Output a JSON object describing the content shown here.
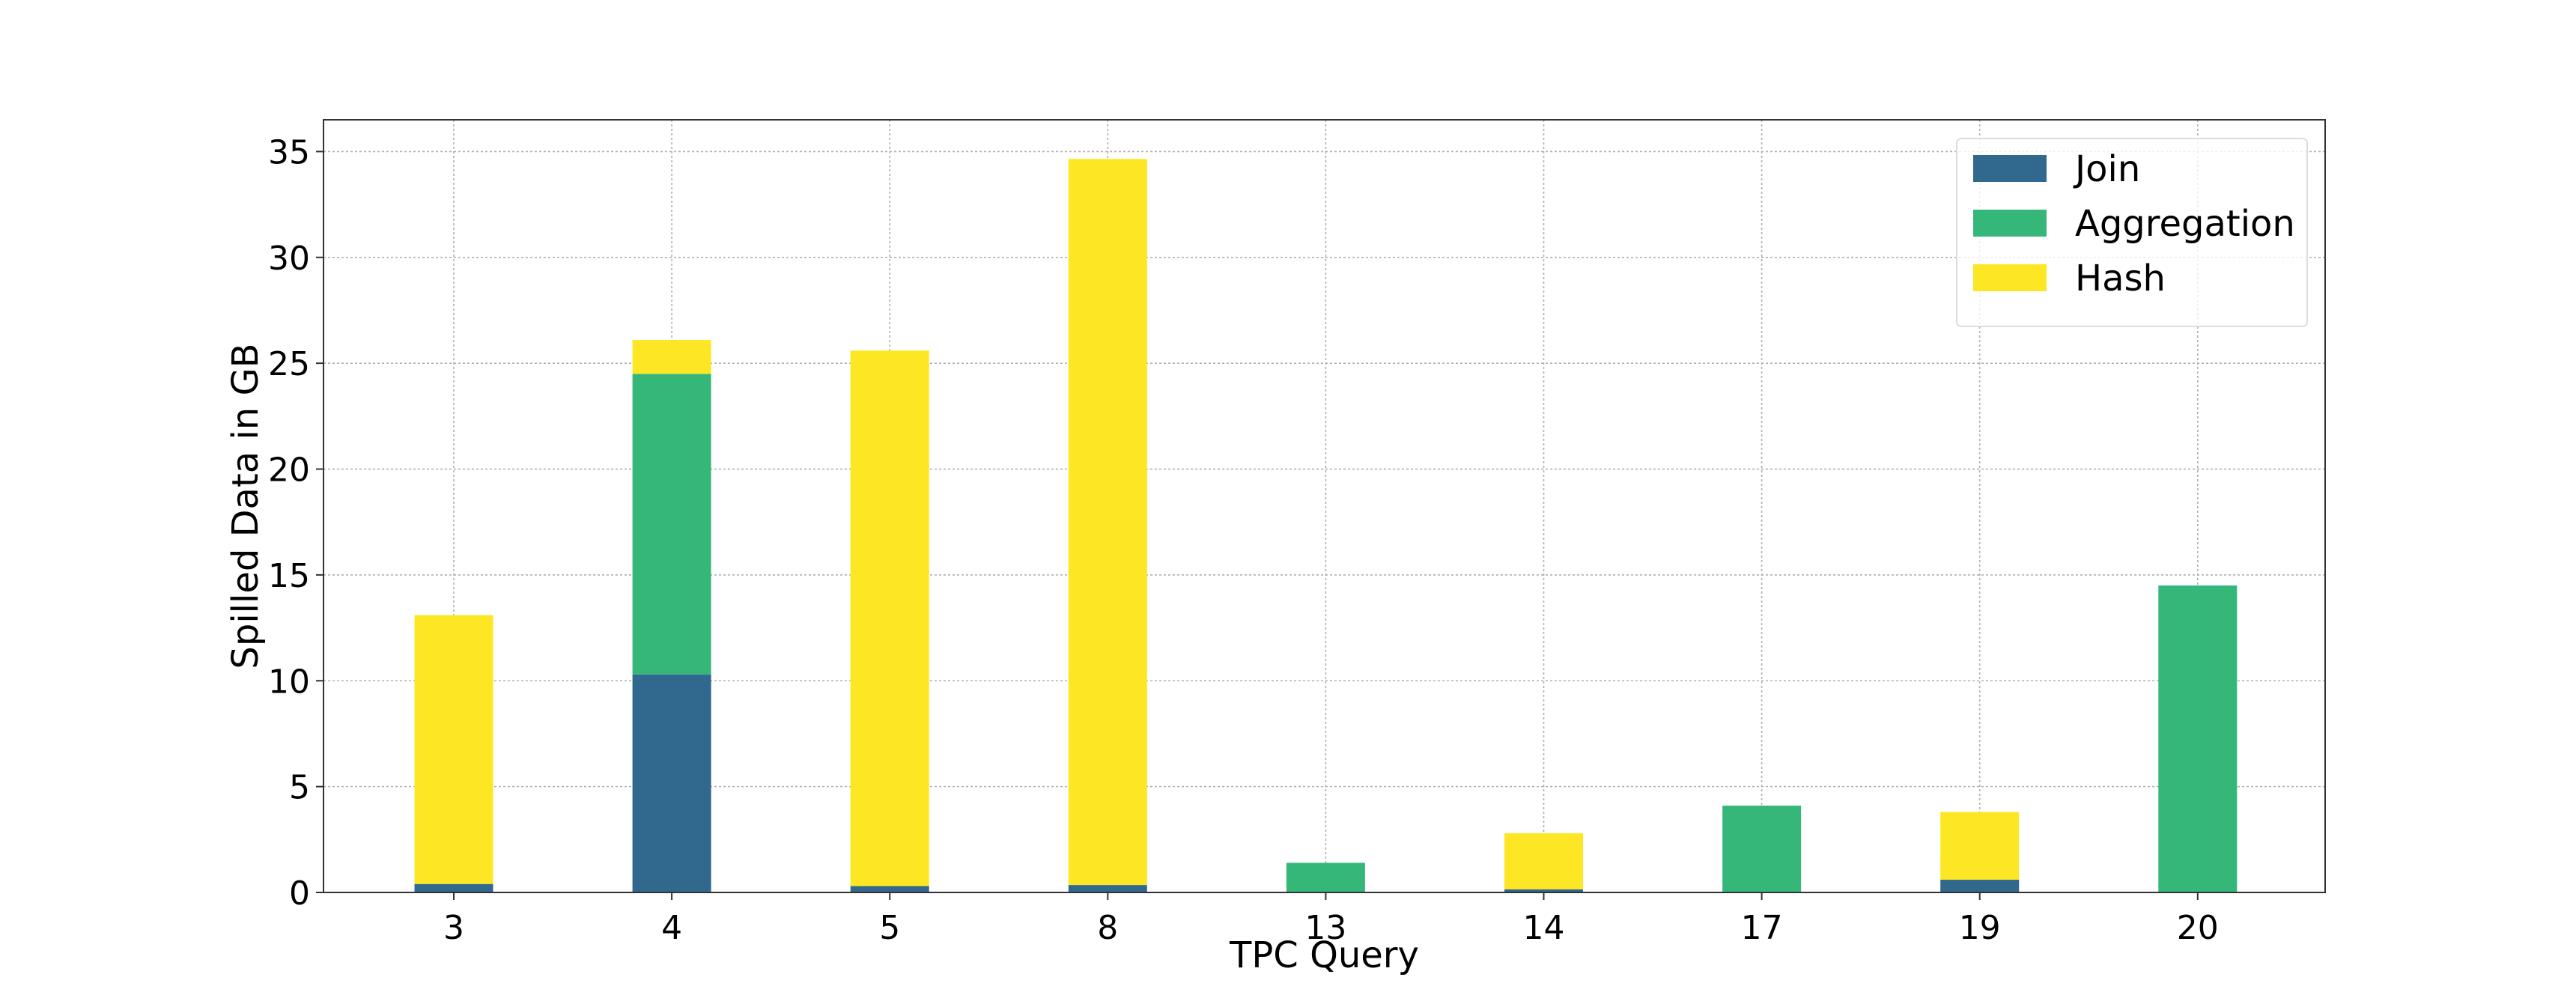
{
  "chart_data": {
    "type": "bar",
    "stacked": true,
    "title": "",
    "xlabel": "TPC Query",
    "ylabel": "Spilled Data in GB",
    "categories": [
      "3",
      "4",
      "5",
      "8",
      "13",
      "14",
      "17",
      "19",
      "20"
    ],
    "series": [
      {
        "name": "Join",
        "color": "#31688e",
        "values": [
          0.4,
          10.3,
          0.3,
          0.35,
          0,
          0.15,
          0,
          0.6,
          0
        ]
      },
      {
        "name": "Aggregation",
        "color": "#35b779",
        "values": [
          0,
          14.2,
          0,
          0,
          1.4,
          0,
          4.1,
          0,
          14.5
        ]
      },
      {
        "name": "Hash",
        "color": "#fde725",
        "values": [
          12.7,
          1.6,
          25.3,
          34.3,
          0,
          2.65,
          0,
          3.2,
          0
        ]
      }
    ],
    "ylim": [
      0,
      36.5
    ],
    "yticks": [
      0,
      5,
      10,
      15,
      20,
      25,
      30,
      35
    ],
    "grid": true,
    "legend_position": "top-right"
  }
}
